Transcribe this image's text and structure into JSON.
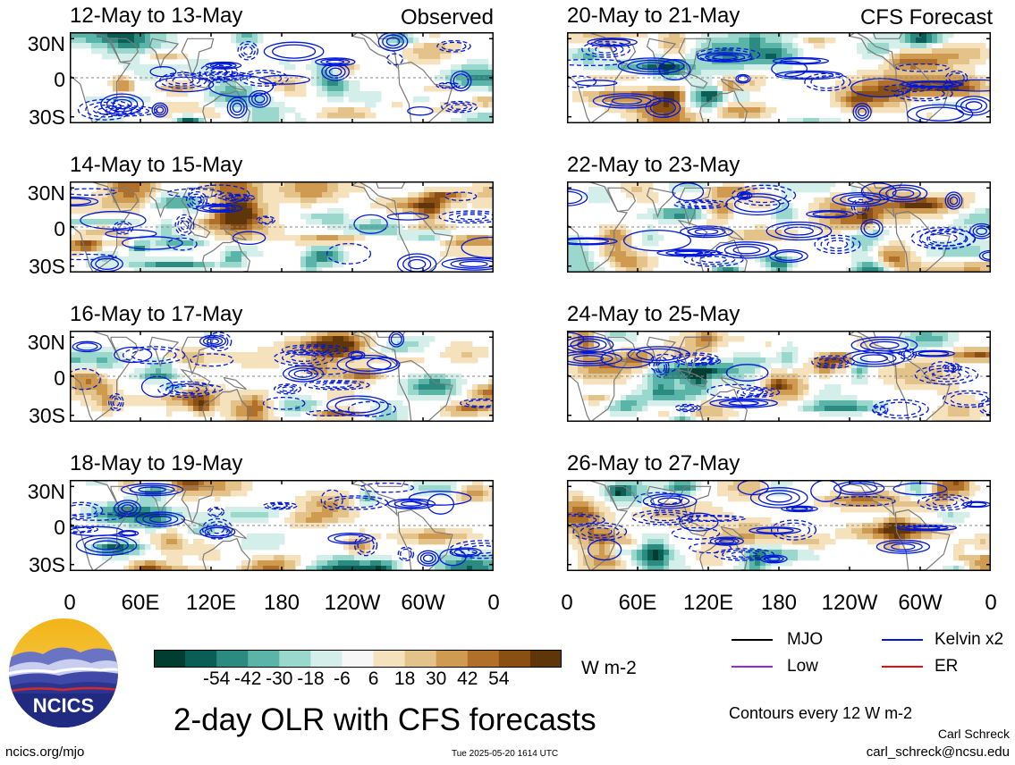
{
  "chart_data": {
    "type": "heatmap",
    "title": "2-day OLR with CFS forecasts",
    "variable": "OLR anomaly",
    "units": "W m-2",
    "left_column_label": "Observed",
    "right_column_label": "CFS Forecast",
    "lat_ticks": [
      "30N",
      "0",
      "30S"
    ],
    "lon_ticks": [
      "0",
      "60E",
      "120E",
      "180",
      "120W",
      "60W",
      "0"
    ],
    "lat_range": [
      -35,
      35
    ],
    "panels": [
      {
        "column": "observed",
        "period": "12-May to 13-May"
      },
      {
        "column": "observed",
        "period": "14-May to 15-May"
      },
      {
        "column": "observed",
        "period": "16-May to 17-May"
      },
      {
        "column": "observed",
        "period": "18-May to 19-May"
      },
      {
        "column": "forecast",
        "period": "20-May to 21-May"
      },
      {
        "column": "forecast",
        "period": "22-May to 23-May"
      },
      {
        "column": "forecast",
        "period": "24-May to 25-May"
      },
      {
        "column": "forecast",
        "period": "26-May to 27-May"
      }
    ],
    "colorbar": {
      "ticks": [
        "-54",
        "-42",
        "-30",
        "-18",
        "-6",
        "6",
        "18",
        "30",
        "42",
        "54"
      ],
      "units_label": "W m-2",
      "colors": [
        "#013d30",
        "#0a5e55",
        "#2b8b80",
        "#5ab4a8",
        "#9ad7cc",
        "#d4eeea",
        "#f7f7f7",
        "#f5e2bc",
        "#e4c38a",
        "#cf9b50",
        "#b0702a",
        "#8a4f12",
        "#5e360a"
      ]
    },
    "contour_note": "Contours every 12 W m-2",
    "legend": [
      {
        "label": "MJO",
        "color": "#000000"
      },
      {
        "label": "Kelvin x2",
        "color": "#0018d8"
      },
      {
        "label": "Low",
        "color": "#9a28d6"
      },
      {
        "label": "ER",
        "color": "#e01010"
      }
    ]
  },
  "logo": {
    "text": "NCICS"
  },
  "footer": {
    "left": "ncics.org/mjo",
    "center": "Tue 2025-05-20 1614 UTC",
    "author": "Carl Schreck",
    "email": "carl_schreck@ncsu.edu"
  }
}
